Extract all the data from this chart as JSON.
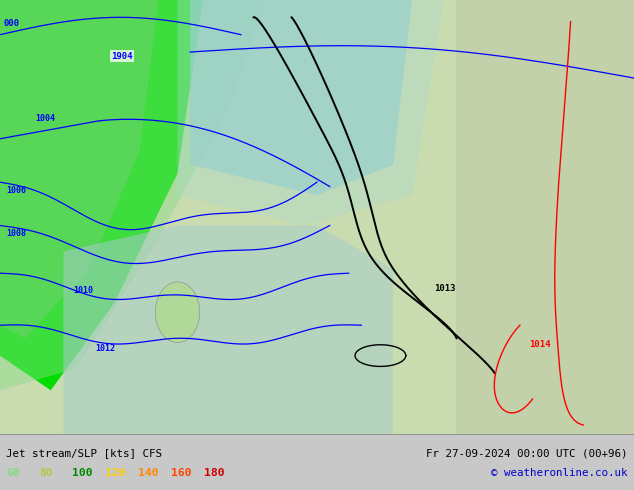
{
  "title_left": "Jet stream/SLP [kts] CFS",
  "title_right": "Fr 27-09-2024 00:00 UTC (00+96)",
  "copyright": "© weatheronline.co.uk",
  "legend_items": [
    {
      "label": "60",
      "color": "#80dd80"
    },
    {
      "label": "80",
      "color": "#aacc44"
    },
    {
      "label": "100",
      "color": "#008800"
    },
    {
      "label": "120",
      "color": "#ffcc00"
    },
    {
      "label": "140",
      "color": "#ff8800"
    },
    {
      "label": "160",
      "color": "#ff4400"
    },
    {
      "label": "180",
      "color": "#cc0000"
    }
  ],
  "fig_width": 6.34,
  "fig_height": 4.9,
  "dpi": 100,
  "map_bg": "#b8d8b0",
  "bottom_bar_color": "#c8c8c8",
  "bright_green": "#00ee00",
  "mid_green": "#88cc88",
  "light_green": "#c0ddb0",
  "teal": "#90ccc8",
  "pale_gray_green": "#c8cdb8",
  "sea_color": "#a8c8c0"
}
